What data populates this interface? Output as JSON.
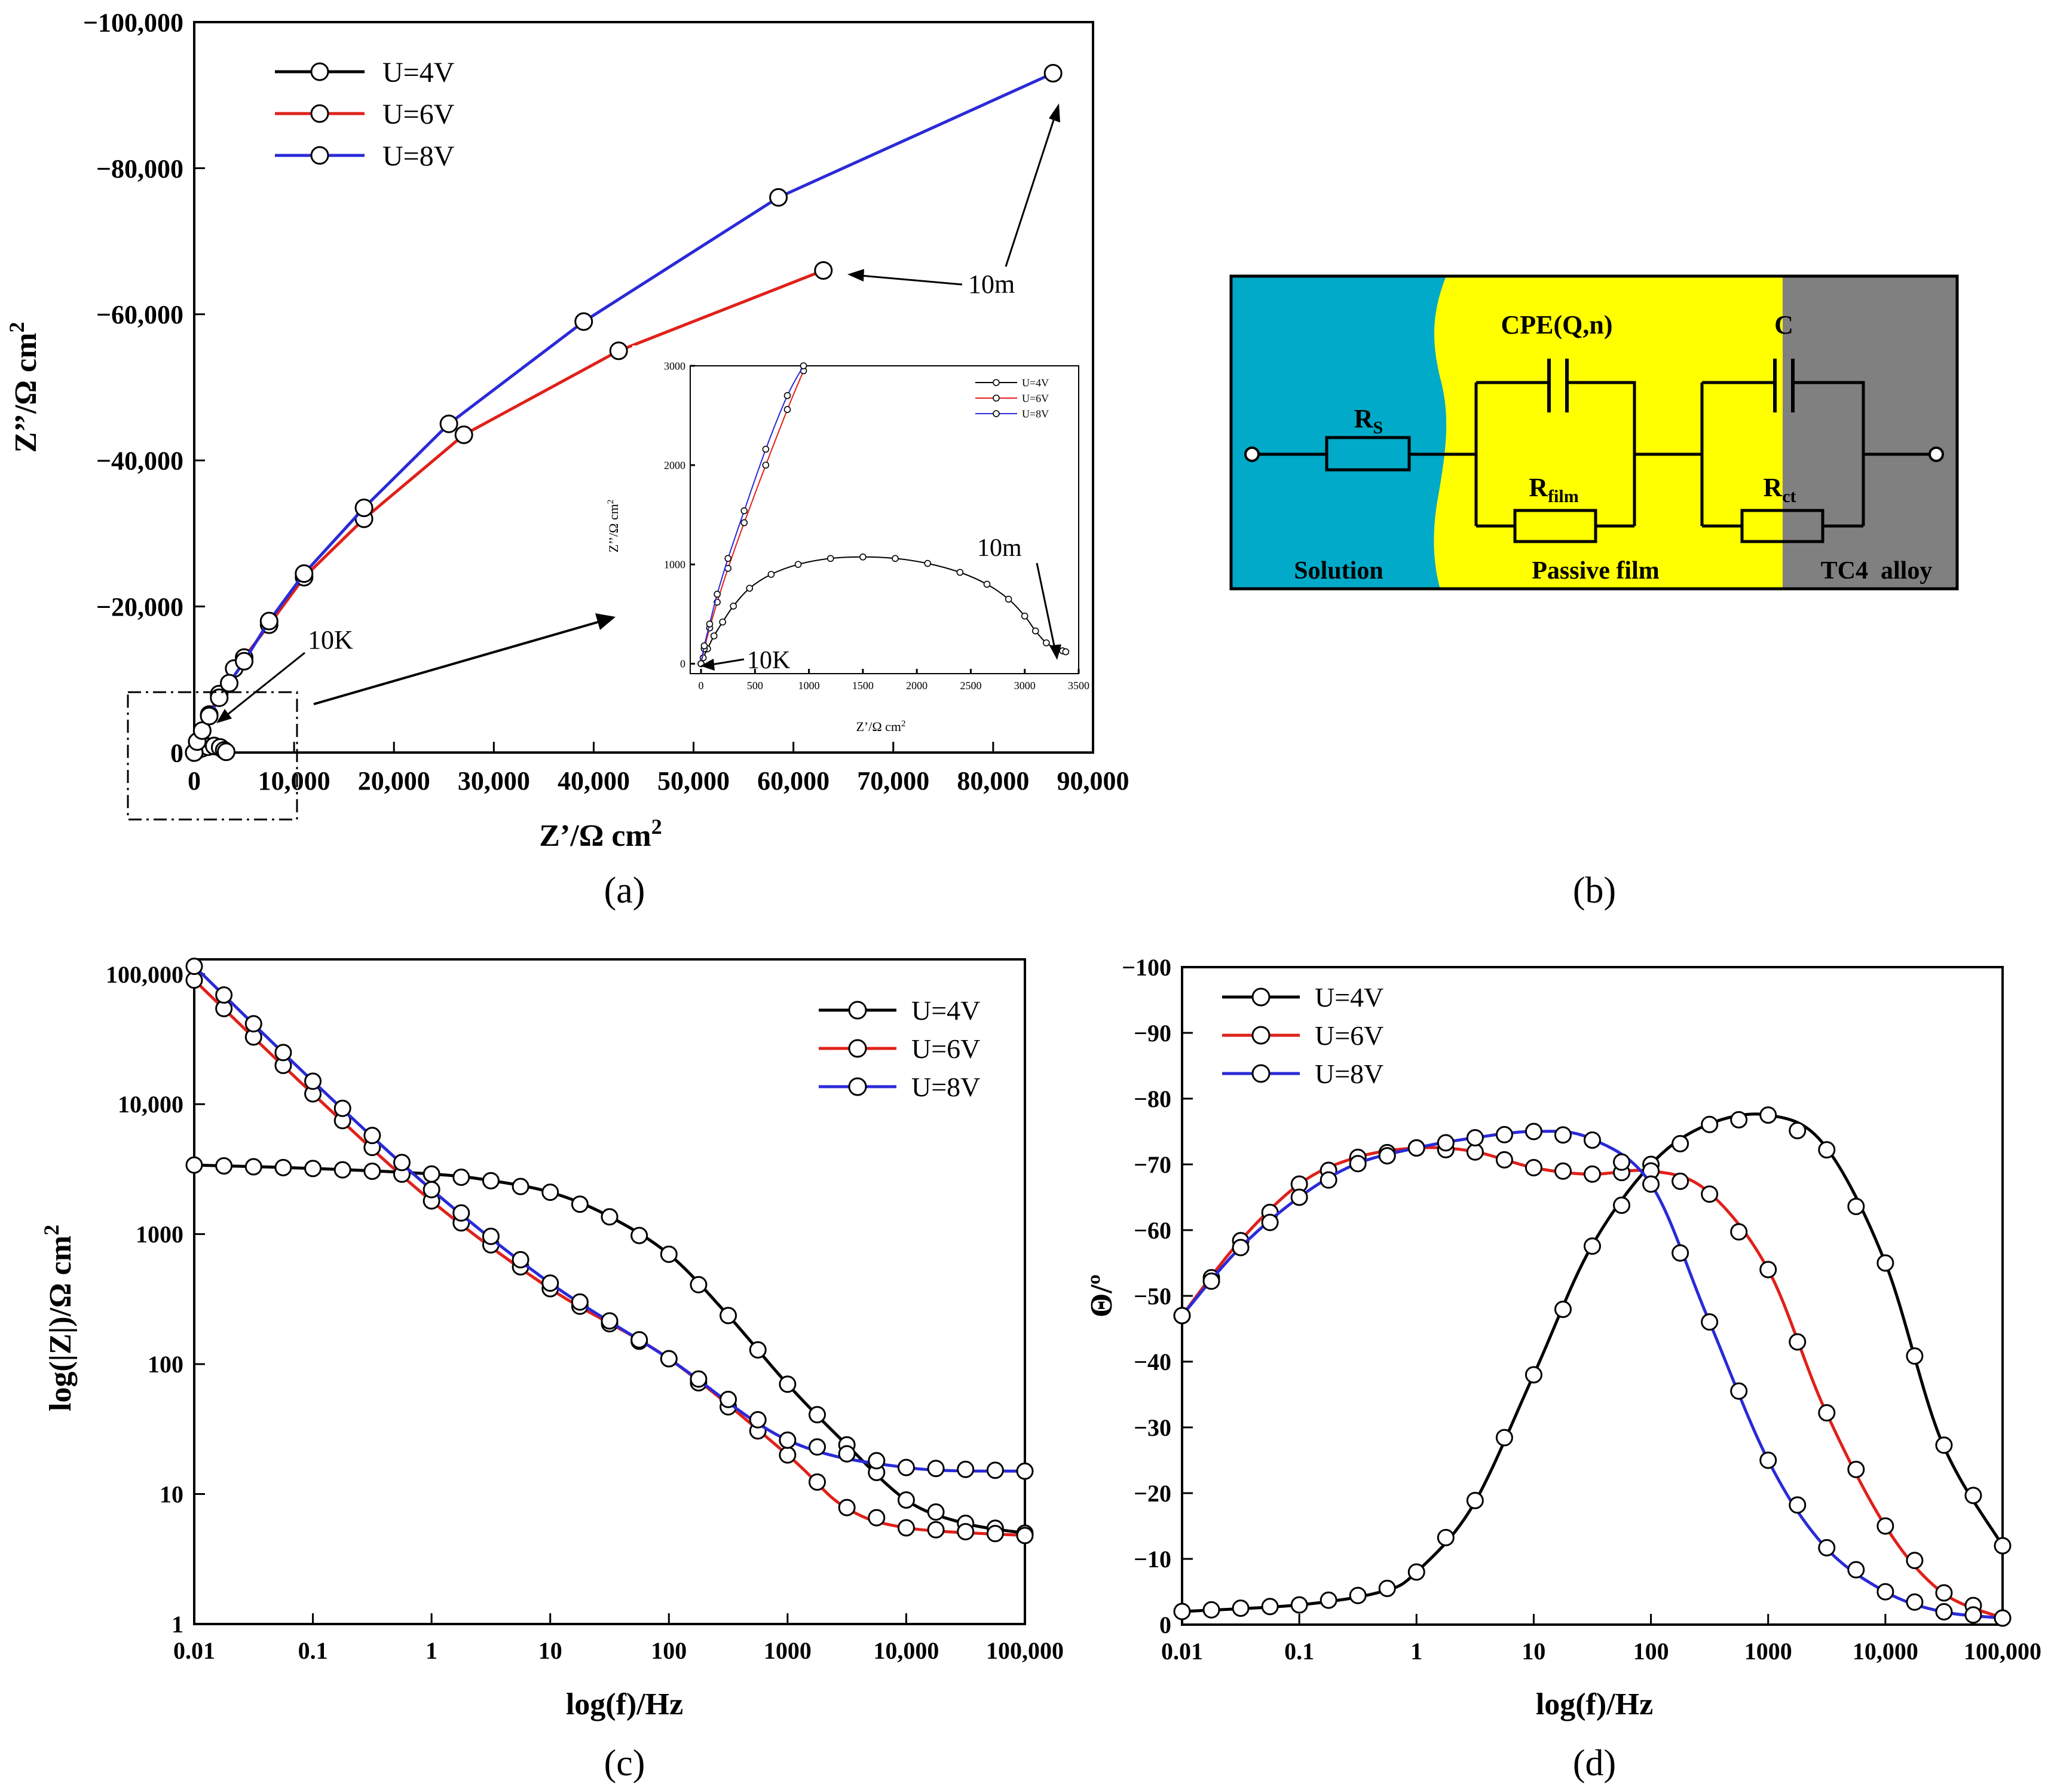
{
  "panels": {
    "a": {
      "label": "(a)"
    },
    "b": {
      "label": "(b)"
    },
    "c": {
      "label": "(c)"
    },
    "d": {
      "label": "(d)"
    }
  },
  "colors": {
    "U4": "#000000",
    "U6": "#e0201a",
    "U8": "#2a2ad8",
    "solution": "#00aac8",
    "film": "#ffff00",
    "alloy": "#808080"
  },
  "annotations": {
    "a_main_10m": "10m",
    "a_main_10K": "10K",
    "a_inset_10m": "10m",
    "a_inset_10K": "10K"
  },
  "circuit": {
    "solution": "Solution",
    "passive_film": "Passive film",
    "alloy": "TC4  alloy",
    "rs_main": "R",
    "rs_sub": "S",
    "cpe": "CPE(Q,n)",
    "rfilm_main": "R",
    "rfilm_sub": "film",
    "c": "C",
    "rct_main": "R",
    "rct_sub": "ct"
  },
  "chart_data": [
    {
      "id": "a",
      "type": "line",
      "title": "",
      "xlabel": "Z’/Ω cm2",
      "ylabel": "Z’’/Ω cm2",
      "xlim": [
        0,
        90000
      ],
      "ylim": [
        0,
        -100000
      ],
      "xticks": [
        0,
        10000,
        20000,
        30000,
        40000,
        50000,
        60000,
        70000,
        80000,
        90000
      ],
      "xtick_labels": [
        "0",
        "10,000",
        "20,000",
        "30,000",
        "40,000",
        "50,000",
        "60,000",
        "70,000",
        "80,000",
        "90,000"
      ],
      "yticks": [
        0,
        -20000,
        -40000,
        -60000,
        -80000,
        -100000
      ],
      "ytick_labels": [
        "0",
        "−20,000",
        "−40,000",
        "−60,000",
        "−80,000",
        "−100,000"
      ],
      "legend": [
        "U=4V",
        "U=6V",
        "U=8V"
      ],
      "series": [
        {
          "name": "U=4V",
          "x": [
            0,
            300,
            800,
            1400,
            2000,
            2600,
            3000,
            3200
          ],
          "y": [
            0,
            -300,
            -600,
            -800,
            -900,
            -700,
            -300,
            -100
          ]
        },
        {
          "name": "U=6V",
          "x": [
            0,
            300,
            800,
            1500,
            2500,
            4000,
            5000,
            7500,
            11000,
            17000,
            27000,
            42500,
            63000
          ],
          "y": [
            0,
            -1500,
            -3000,
            -5200,
            -8000,
            -11500,
            -13000,
            -17500,
            -24000,
            -32000,
            -43500,
            -55000,
            -66000
          ]
        },
        {
          "name": "U=8V",
          "x": [
            0,
            300,
            800,
            1500,
            2500,
            3500,
            5000,
            7500,
            11000,
            17000,
            25500,
            39000,
            58500,
            86000
          ],
          "y": [
            0,
            -1500,
            -3000,
            -5000,
            -7500,
            -9500,
            -12500,
            -18000,
            -24500,
            -33500,
            -45000,
            -59000,
            -76000,
            -93000
          ]
        }
      ]
    },
    {
      "id": "a_inset",
      "type": "line",
      "title": "",
      "xlabel": "Z’/Ω cm2",
      "ylabel": "Z’’/Ω cm2",
      "xlim": [
        -100,
        3500
      ],
      "ylim": [
        -100,
        3000
      ],
      "xticks": [
        0,
        500,
        1000,
        1500,
        2000,
        2500,
        3000,
        3500
      ],
      "xtick_labels": [
        "0",
        "500",
        "1000",
        "1500",
        "2000",
        "2500",
        "3000",
        "3500"
      ],
      "yticks": [
        0,
        1000,
        2000,
        3000
      ],
      "ytick_labels": [
        "0",
        "1000",
        "2000",
        "3000"
      ],
      "legend": [
        "U=4V",
        "U=6V",
        "U=8V"
      ],
      "series": [
        {
          "name": "U=4V",
          "x": [
            0,
            20,
            60,
            120,
            200,
            300,
            450,
            650,
            900,
            1200,
            1500,
            1800,
            2100,
            2400,
            2650,
            2850,
            3000,
            3100,
            3200,
            3300,
            3350,
            3380
          ],
          "y": [
            0,
            60,
            150,
            280,
            420,
            580,
            760,
            900,
            1000,
            1060,
            1075,
            1060,
            1010,
            920,
            800,
            650,
            480,
            330,
            210,
            150,
            130,
            120
          ]
        },
        {
          "name": "U=6V",
          "x": [
            0,
            30,
            80,
            150,
            250,
            400,
            600,
            800,
            950
          ],
          "y": [
            0,
            150,
            360,
            620,
            960,
            1420,
            2000,
            2560,
            2950
          ]
        },
        {
          "name": "U=8V",
          "x": [
            0,
            30,
            80,
            150,
            250,
            400,
            600,
            800,
            950
          ],
          "y": [
            0,
            180,
            400,
            700,
            1060,
            1540,
            2160,
            2700,
            3000
          ]
        }
      ]
    },
    {
      "id": "c",
      "type": "line",
      "title": "",
      "xlabel": "log(f)/Hz",
      "ylabel": "log(|Z|)/Ω  cm2",
      "xscale": "log",
      "yscale": "log",
      "xlim": [
        0.01,
        100000
      ],
      "ylim": [
        1,
        130000
      ],
      "xticks": [
        0.01,
        0.1,
        1,
        10,
        100,
        1000,
        10000,
        100000
      ],
      "xtick_labels": [
        "0.01",
        "0.1",
        "1",
        "10",
        "100",
        "1000",
        "10,000",
        "100,000"
      ],
      "yticks": [
        1,
        10,
        100,
        1000,
        10000,
        100000
      ],
      "ytick_labels": [
        "1",
        "10",
        "100",
        "1000",
        "10,000",
        "100,000"
      ],
      "legend": [
        "U=4V",
        "U=6V",
        "U=8V"
      ],
      "series": [
        {
          "name": "U=4V",
          "x": [
            0.01,
            0.1,
            1,
            3,
            10,
            30,
            100,
            300,
            1000,
            3000,
            10000,
            30000,
            100000
          ],
          "y": [
            3400,
            3200,
            2900,
            2600,
            2100,
            1400,
            700,
            250,
            70,
            25,
            9,
            6,
            5
          ]
        },
        {
          "name": "U=6V",
          "x": [
            0.01,
            0.1,
            1,
            10,
            100,
            1000,
            3000,
            10000,
            100000
          ],
          "y": [
            90000,
            12000,
            1800,
            380,
            110,
            20,
            8,
            5.5,
            4.8
          ]
        },
        {
          "name": "U=8V",
          "x": [
            0.01,
            0.1,
            1,
            10,
            100,
            1000,
            10000,
            100000
          ],
          "y": [
            115000,
            15000,
            2200,
            420,
            110,
            26,
            16,
            15
          ]
        }
      ]
    },
    {
      "id": "d",
      "type": "line",
      "title": "",
      "xlabel": "log(f)/Hz",
      "ylabel": "Θ/º",
      "xscale": "log",
      "xlim": [
        0.01,
        100000
      ],
      "ylim": [
        0,
        -100
      ],
      "xticks": [
        0.01,
        0.1,
        1,
        10,
        100,
        1000,
        10000,
        100000
      ],
      "xtick_labels": [
        "0.01",
        "0.1",
        "1",
        "10",
        "100",
        "1000",
        "10,000",
        "100,000"
      ],
      "yticks": [
        0,
        -10,
        -20,
        -30,
        -40,
        -50,
        -60,
        -70,
        -80,
        -90,
        -100
      ],
      "ytick_labels": [
        "0",
        "−10",
        "−20",
        "−30",
        "−40",
        "−50",
        "−60",
        "−70",
        "−80",
        "−90",
        "−100"
      ],
      "legend": [
        "U=4V",
        "U=6V",
        "U=8V"
      ],
      "series": [
        {
          "name": "U=4V",
          "x": [
            0.01,
            0.1,
            0.5,
            1,
            3,
            10,
            30,
            100,
            300,
            1000,
            3000,
            10000,
            30000,
            100000
          ],
          "y": [
            -2,
            -3,
            -5,
            -8,
            -18,
            -38,
            -57,
            -70,
            -76,
            -77.5,
            -73,
            -55,
            -28,
            -12
          ]
        },
        {
          "name": "U=6V",
          "x": [
            0.01,
            0.03,
            0.1,
            0.3,
            1,
            3,
            10,
            30,
            100,
            300,
            1000,
            3000,
            10000,
            30000,
            100000
          ],
          "y": [
            -47,
            -58,
            -67,
            -71,
            -72.5,
            -72,
            -69.5,
            -68.5,
            -69,
            -66,
            -54,
            -33,
            -15,
            -5,
            -1
          ]
        },
        {
          "name": "U=8V",
          "x": [
            0.01,
            0.03,
            0.1,
            0.3,
            1,
            3,
            10,
            30,
            100,
            300,
            1000,
            3000,
            10000,
            30000,
            100000
          ],
          "y": [
            -47,
            -57,
            -65,
            -70,
            -72.5,
            -74,
            -75,
            -74,
            -67,
            -47,
            -25,
            -12,
            -5,
            -2,
            -1
          ]
        }
      ]
    }
  ]
}
